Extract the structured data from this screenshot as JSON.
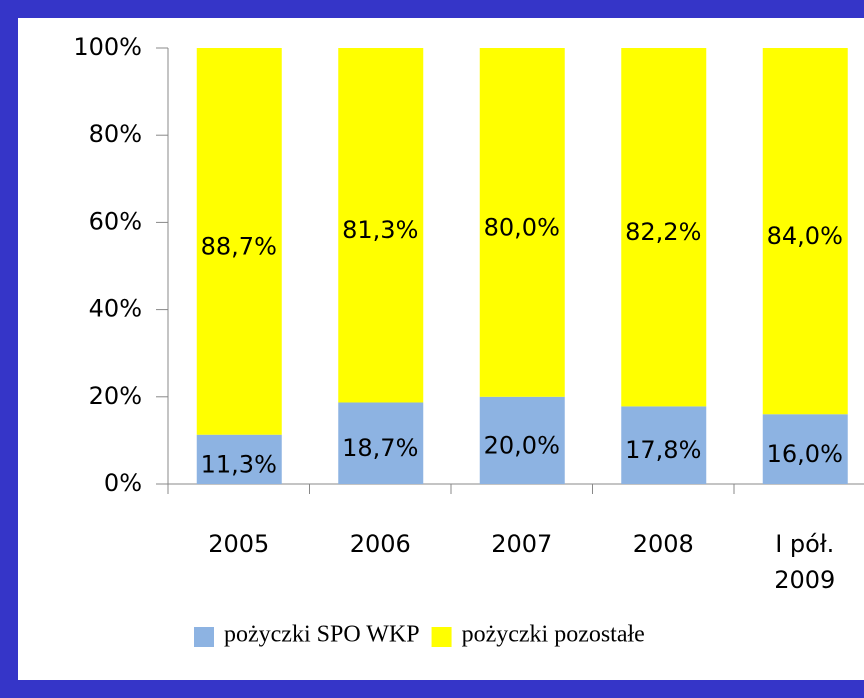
{
  "chart_data": {
    "type": "stacked_bar",
    "categories": [
      "2005",
      "2006",
      "2007",
      "2008",
      "I pół. 2009"
    ],
    "series": [
      {
        "name": "pożyczki SPO WKP",
        "color": "#8db3e2",
        "values": [
          11.3,
          18.7,
          20.0,
          17.8,
          16.0
        ],
        "value_labels": [
          "11,3%",
          "18,7%",
          "20,0%",
          "17,8%",
          "16,0%"
        ]
      },
      {
        "name": "pożyczki pozostałe",
        "color": "#ffff00",
        "values": [
          88.7,
          81.3,
          80.0,
          82.2,
          84.0
        ],
        "value_labels": [
          "88,7%",
          "81,3%",
          "80,0%",
          "82,2%",
          "84,0%"
        ]
      }
    ],
    "ylim": [
      0,
      100
    ],
    "yticks": [
      {
        "value": 0,
        "label": "0%"
      },
      {
        "value": 20,
        "label": "20%"
      },
      {
        "value": 40,
        "label": "40%"
      },
      {
        "value": 60,
        "label": "60%"
      },
      {
        "value": 80,
        "label": "80%"
      },
      {
        "value": 100,
        "label": "100%"
      }
    ],
    "legend": "bottom"
  }
}
